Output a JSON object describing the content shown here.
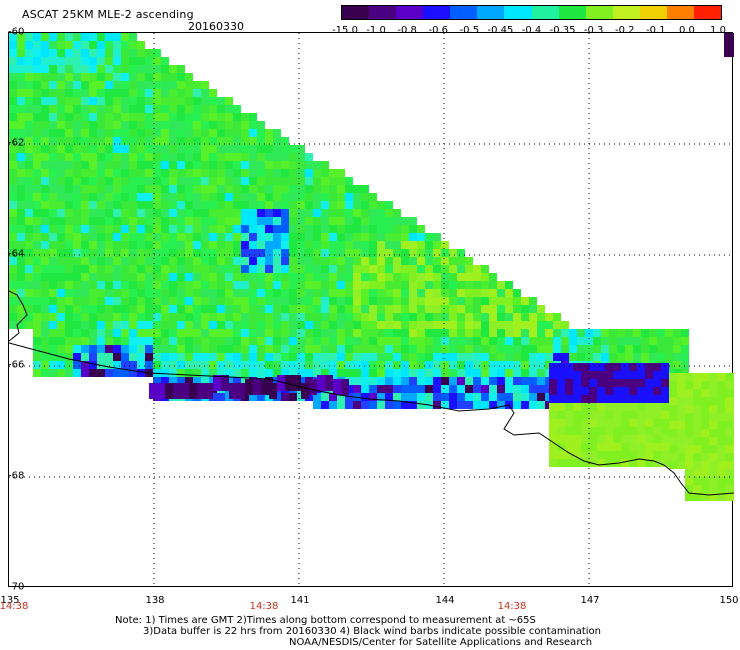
{
  "header": {
    "title": "ASCAT 25KM MLE-2 ascending",
    "date": "20160330"
  },
  "colorbar": {
    "labels": [
      "-15.0",
      "-1.0",
      "-0.8",
      "-0.6",
      "-0.5",
      "-0.45",
      "-0.4",
      "-0.35",
      "-0.3",
      "-0.2",
      "-0.1",
      "0.0",
      "1.0"
    ],
    "colors": [
      "#3a0050",
      "#4b0082",
      "#5a00c8",
      "#1a10ff",
      "#0060ff",
      "#00a8ff",
      "#00e8ff",
      "#20f0a0",
      "#20e840",
      "#80f020",
      "#c0f020",
      "#f0d000",
      "#ff8000",
      "#ff2000"
    ]
  },
  "map": {
    "lat_labels": [
      "-60",
      "-62",
      "-64",
      "-66",
      "-68",
      "-70"
    ],
    "lon_labels": [
      "135",
      "138",
      "141",
      "144",
      "147",
      "150"
    ],
    "time_labels": [
      "14:38",
      "14:38",
      "14:38"
    ]
  },
  "notes": [
    "Note: 1) Times are GMT 2)Times along bottom correspond to measurement at ~65S",
    "3)Data buffer is 22 hrs from 20160330 4) Black wind barbs indicate possible contamination",
    "NOAA/NESDIS/Center for Satellite Applications and Research"
  ]
}
